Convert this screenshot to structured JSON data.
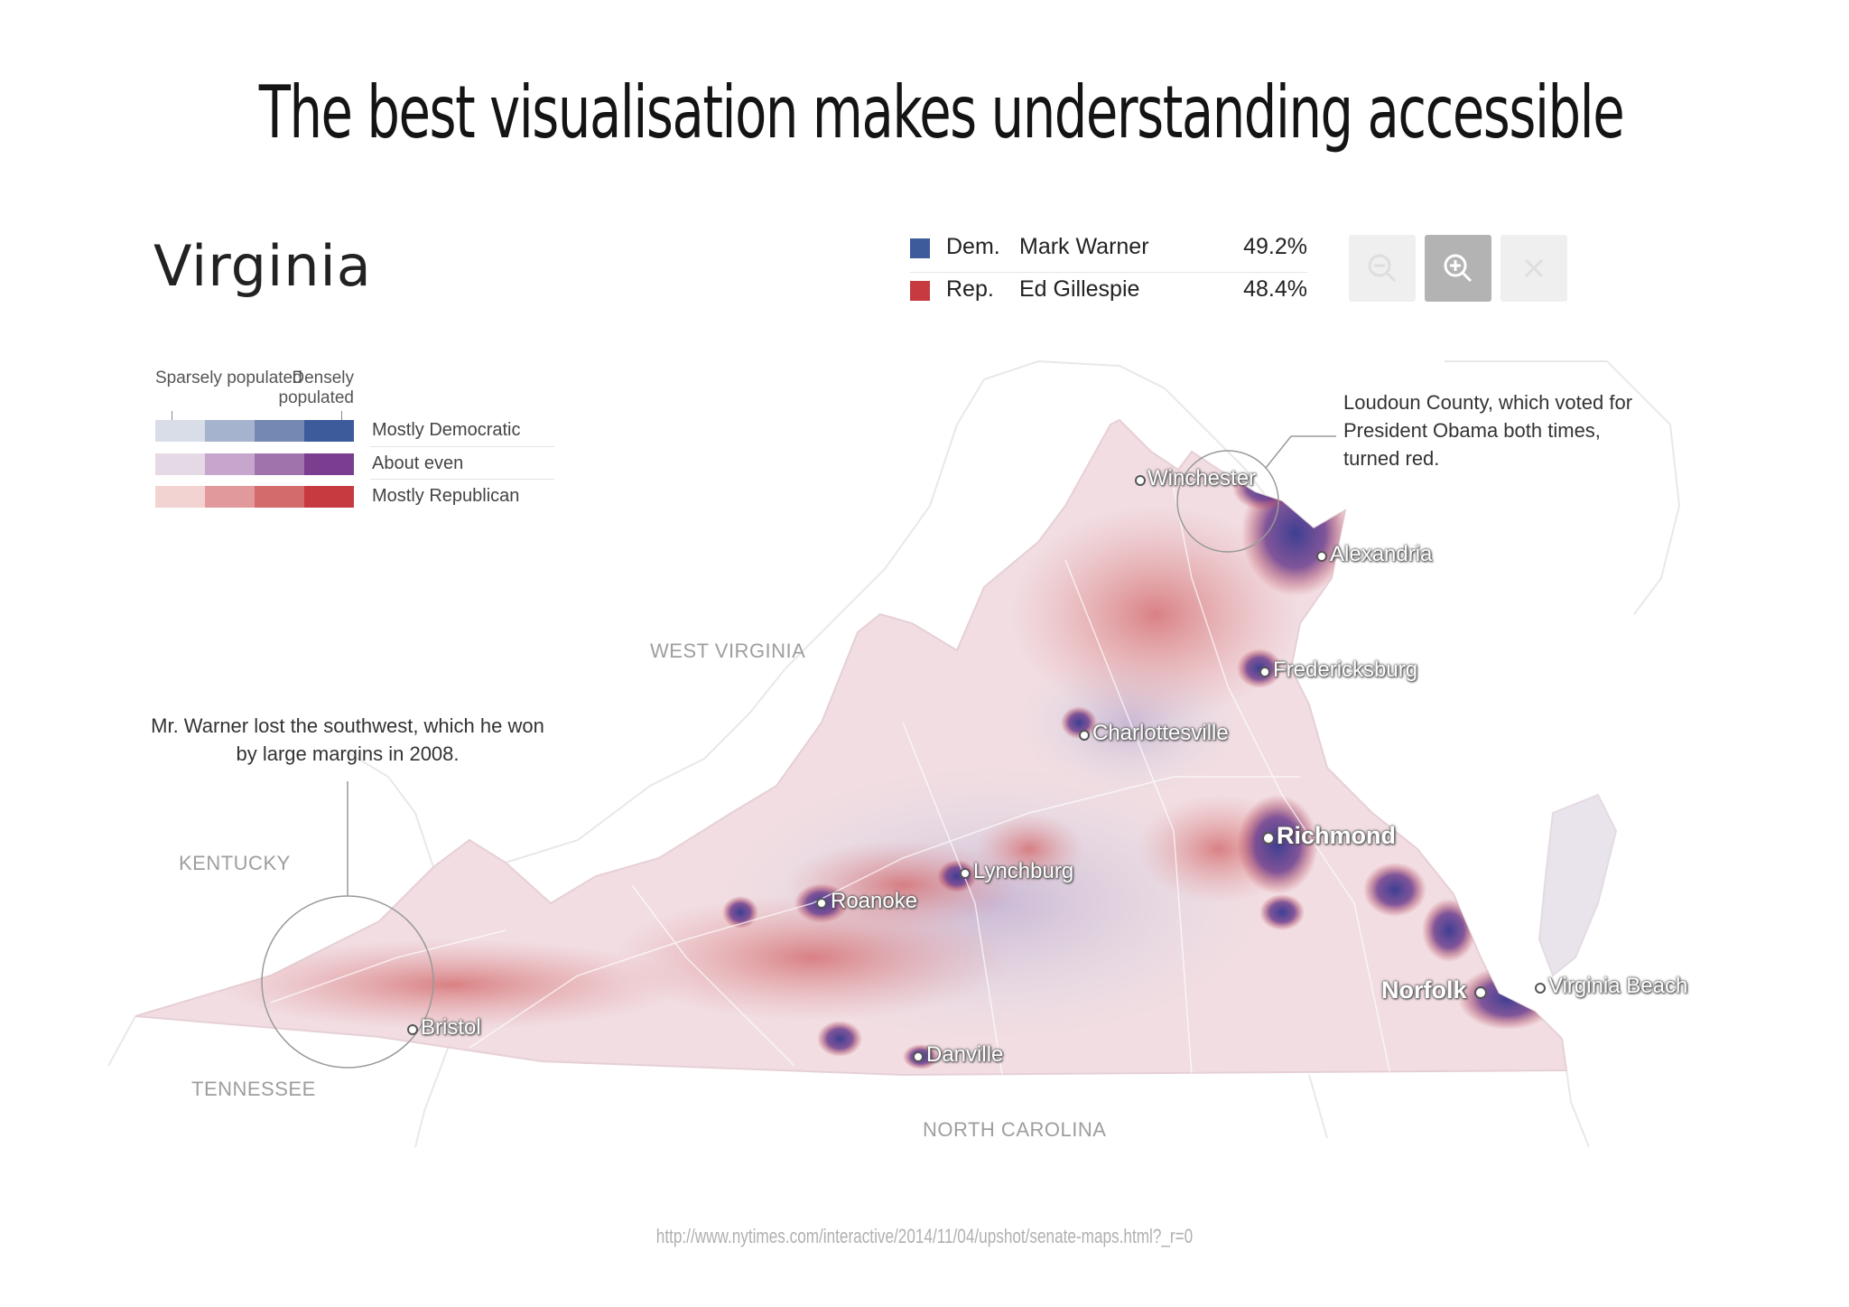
{
  "slide": {
    "title": "The best visualisation makes understanding accessible",
    "source_url": "http://www.nytimes.com/interactive/2014/11/04/upshot/senate-maps.html?_r=0"
  },
  "map": {
    "title": "Virginia",
    "results": [
      {
        "party": "Dem.",
        "candidate": "Mark Warner",
        "percent": "49.2%",
        "color": "#3d5a9b"
      },
      {
        "party": "Rep.",
        "candidate": "Ed Gillespie",
        "percent": "48.4%",
        "color": "#c73a3f"
      }
    ],
    "zoom_controls": {
      "zoom_out_icon": "zoom-out-icon",
      "zoom_in_icon": "zoom-in-icon",
      "close_icon": "close-icon"
    },
    "legend": {
      "sparse_label": "Sparsely populated",
      "dense_label": "Densely populated",
      "rows": [
        {
          "label": "Mostly Democratic",
          "colors": [
            "#d9dde8",
            "#a6b3cf",
            "#7588b4",
            "#3d5a9b"
          ]
        },
        {
          "label": "About even",
          "colors": [
            "#e6d9e6",
            "#c6a6cc",
            "#a173ad",
            "#7a3d8f"
          ]
        },
        {
          "label": "Mostly Republican",
          "colors": [
            "#f3d2d2",
            "#e2999b",
            "#d36a6c",
            "#c73a3f"
          ]
        }
      ]
    },
    "annotations": {
      "loudoun": "Loudoun County, which voted for President Obama both times, turned red.",
      "southwest": "Mr. Warner lost the southwest, which he won by large margins in 2008."
    },
    "regions": [
      "WEST VIRGINIA",
      "KENTUCKY",
      "TENNESSEE",
      "NORTH CAROLINA"
    ],
    "cities": [
      "Winchester",
      "Alexandria",
      "Fredericksburg",
      "Charlottesville",
      "Richmond",
      "Lynchburg",
      "Roanoke",
      "Norfolk",
      "Virginia Beach",
      "Bristol",
      "Danville"
    ],
    "colors": {
      "state_fill": "#f1dde2",
      "republican": "#c73a3f",
      "democratic": "#3d5a9b",
      "even": "#7a3d8f"
    }
  }
}
